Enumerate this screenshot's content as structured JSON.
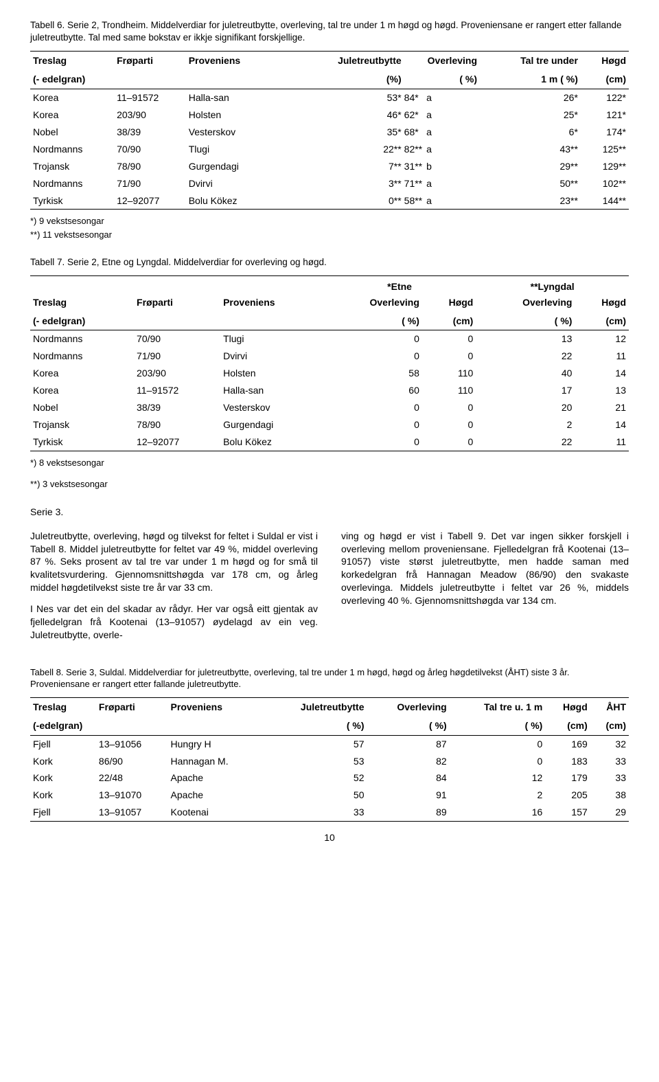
{
  "page_number": "10",
  "table6": {
    "caption": "Tabell 6. Serie 2, Trondheim. Middelverdiar for juletreutbytte, overleving, tal tre under 1 m høgd og høgd. Proveniensane er rangert etter fallande juletreutbytte. Tal med same bokstav er ikkje signifikant forskjellige.",
    "headers": {
      "c1a": "Treslag",
      "c1b": "(- edelgran)",
      "c2": "Frøparti",
      "c3": "Proveniens",
      "c4a": "Juletreutbytte",
      "c4b": "(%)",
      "c5a": "Overleving",
      "c5b": "( %)",
      "c6a": "Tal tre under",
      "c6b": "1 m ( %)",
      "c7a": "Høgd",
      "c7b": "(cm)"
    },
    "rows": [
      {
        "treslag": "Korea",
        "froparti": "11–91572",
        "prov": "Halla-san",
        "jul": "53*",
        "ovl": "84*",
        "lt": "a",
        "ttu": "26*",
        "hogd": "122*"
      },
      {
        "treslag": "Korea",
        "froparti": "203/90",
        "prov": "Holsten",
        "jul": "46*",
        "ovl": "62*",
        "lt": "a",
        "ttu": "25*",
        "hogd": "121*"
      },
      {
        "treslag": "Nobel",
        "froparti": "38/39",
        "prov": "Vesterskov",
        "jul": "35*",
        "ovl": "68*",
        "lt": "a",
        "ttu": "6*",
        "hogd": "174*"
      },
      {
        "treslag": "Nordmanns",
        "froparti": "70/90",
        "prov": "Tlugi",
        "jul": "22**",
        "ovl": "82**",
        "lt": "a",
        "ttu": "43**",
        "hogd": "125**"
      },
      {
        "treslag": "Trojansk",
        "froparti": "78/90",
        "prov": "Gurgendagi",
        "jul": "7**",
        "ovl": "31**",
        "lt": "b",
        "ttu": "29**",
        "hogd": "129**"
      },
      {
        "treslag": "Nordmanns",
        "froparti": "71/90",
        "prov": "Dvirvi",
        "jul": "3**",
        "ovl": "71**",
        "lt": "a",
        "ttu": "50**",
        "hogd": "102**"
      },
      {
        "treslag": "Tyrkisk",
        "froparti": "12–92077",
        "prov": "Bolu Kökez",
        "jul": "0**",
        "ovl": "58**",
        "lt": "a",
        "ttu": "23**",
        "hogd": "144**"
      }
    ],
    "footnote1": "*) 9 vekstsesongar",
    "footnote2": "**) 11 vekstsesongar"
  },
  "table7": {
    "caption": "Tabell 7. Serie 2, Etne og Lyngdal. Middelverdiar for overleving og høgd.",
    "super1": "*Etne",
    "super2": "**Lyngdal",
    "headers": {
      "c1a": "Treslag",
      "c1b": "(- edelgran)",
      "c2": "Frøparti",
      "c3": "Proveniens",
      "c4a": "Overleving",
      "c4b": "( %)",
      "c5a": "Høgd",
      "c5b": "(cm)",
      "c6a": "Overleving",
      "c6b": "( %)",
      "c7a": "Høgd",
      "c7b": "(cm)"
    },
    "rows": [
      {
        "treslag": "Nordmanns",
        "froparti": "70/90",
        "prov": "Tlugi",
        "eo": "0",
        "eh": "0",
        "lo": "13",
        "lh": "12"
      },
      {
        "treslag": "Nordmanns",
        "froparti": "71/90",
        "prov": "Dvirvi",
        "eo": "0",
        "eh": "0",
        "lo": "22",
        "lh": "11"
      },
      {
        "treslag": "Korea",
        "froparti": "203/90",
        "prov": "Holsten",
        "eo": "58",
        "eh": "110",
        "lo": "40",
        "lh": "14"
      },
      {
        "treslag": "Korea",
        "froparti": "11–91572",
        "prov": "Halla-san",
        "eo": "60",
        "eh": "110",
        "lo": "17",
        "lh": "13"
      },
      {
        "treslag": "Nobel",
        "froparti": "38/39",
        "prov": "Vesterskov",
        "eo": "0",
        "eh": "0",
        "lo": "20",
        "lh": "21"
      },
      {
        "treslag": "Trojansk",
        "froparti": "78/90",
        "prov": "Gurgendagi",
        "eo": "0",
        "eh": "0",
        "lo": "2",
        "lh": "14"
      },
      {
        "treslag": "Tyrkisk",
        "froparti": "12–92077",
        "prov": "Bolu Kökez",
        "eo": "0",
        "eh": "0",
        "lo": "22",
        "lh": "11"
      }
    ],
    "footnote1": "*) 8 vekstsesongar",
    "footnote2": "**) 3 vekstsesongar"
  },
  "serie3": {
    "heading": "Serie 3.",
    "col1_p1": "Juletreutbytte, overleving, høgd og tilvekst for feltet i Suldal er vist i Tabell 8. Middel juletreutbytte for feltet var 49 %, middel overleving 87 %. Seks prosent av tal tre var under 1 m høgd og for små til kvalitetsvurdering. Gjennomsnittshøgda var 178 cm, og årleg middel høgdetilvekst siste tre år var 33 cm.",
    "col1_p2": "I Nes var det ein del skadar av rådyr. Her var også eitt gjentak av fjelledelgran frå Kootenai (13–91057) øydelagd av ein veg. Juletreutbytte, overle-",
    "col2_p1": "ving og høgd er vist i Tabell 9. Det var ingen sikker forskjell i overleving mellom proveniensane. Fjelledelgran frå Kootenai (13–91057) viste størst juletreutbytte, men hadde saman med korkedelgran frå Hannagan Meadow (86/90) den svakaste overlevinga. Middels juletreutbytte i feltet var 26 %, middels overleving 40 %. Gjennomsnittshøgda var 134 cm."
  },
  "table8": {
    "caption": "Tabell 8. Serie 3, Suldal. Middelverdiar for juletreutbytte, overleving, tal tre under 1 m høgd, høgd og årleg høgdetilvekst (ÅHT) siste 3 år. Proveniensane er rangert etter fallande juletreutbytte.",
    "headers": {
      "c1a": "Treslag",
      "c1b": "(-edelgran)",
      "c2": "Frøparti",
      "c3": "Proveniens",
      "c4a": "Juletreutbytte",
      "c4b": "( %)",
      "c5a": "Overleving",
      "c5b": "( %)",
      "c6a": "Tal tre u. 1 m",
      "c6b": "( %)",
      "c7a": "Høgd",
      "c7b": "(cm)",
      "c8a": "ÅHT",
      "c8b": "(cm)"
    },
    "rows": [
      {
        "treslag": "Fjell",
        "froparti": "13–91056",
        "prov": "Hungry H",
        "jul": "57",
        "ovl": "87",
        "ttu": "0",
        "hogd": "169",
        "aht": "32"
      },
      {
        "treslag": "Kork",
        "froparti": "86/90",
        "prov": "Hannagan M.",
        "jul": "53",
        "ovl": "82",
        "ttu": "0",
        "hogd": "183",
        "aht": "33"
      },
      {
        "treslag": "Kork",
        "froparti": "22/48",
        "prov": "Apache",
        "jul": "52",
        "ovl": "84",
        "ttu": "12",
        "hogd": "179",
        "aht": "33"
      },
      {
        "treslag": "Kork",
        "froparti": "13–91070",
        "prov": "Apache",
        "jul": "50",
        "ovl": "91",
        "ttu": "2",
        "hogd": "205",
        "aht": "38"
      },
      {
        "treslag": "Fjell",
        "froparti": "13–91057",
        "prov": "Kootenai",
        "jul": "33",
        "ovl": "89",
        "ttu": "16",
        "hogd": "157",
        "aht": "29"
      }
    ]
  }
}
